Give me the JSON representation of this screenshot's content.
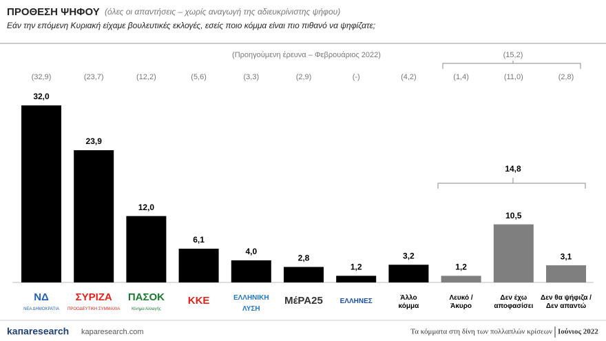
{
  "chart_data": {
    "type": "bar",
    "title": "ΠΡΟΘΕΣΗ ΨΗΦΟΥ",
    "subtitle": "(όλες οι απαντήσεις – χωρίς αναγωγή της αδιευκρίνιστης ψήφου)",
    "question": "Εάν την επόμενη Κυριακή είχαμε βουλευτικές εκλογές, εσείς ποιο κόμμα είναι πιο πιθανό να ψηφίζατε;",
    "previous_note": "(Προηγούμενη έρευνα – Φεβρουάριος 2022)",
    "categories": [
      [
        "ΝΔ",
        "ΝΕΑ ΔΗΜΟΚΡΑΤΙΑ"
      ],
      [
        "ΣΥΡΙΖΑ",
        "ΠΡΟΟΔΕΥΤΙΚΗ ΣΥΜΜΑΧΙΑ"
      ],
      [
        "ΠΑΣΟΚ",
        "Κίνημα Αλλαγής"
      ],
      [
        "ΚΚΕ"
      ],
      [
        "ΕΛΛΗΝΙΚΗ",
        "ΛΥΣΗ"
      ],
      [
        "ΜέΡΑ25"
      ],
      [
        "ΕΛΛΗΝΕΣ"
      ],
      [
        "Άλλο",
        "κόμμα"
      ],
      [
        "Λευκό /",
        "Άκυρο"
      ],
      [
        "Δεν έχω",
        "αποφασίσει"
      ],
      [
        "Δεν θα ψήφιζα /",
        "Δεν απαντώ"
      ]
    ],
    "label_colors": [
      "#1f5fb4",
      "#e2231a",
      "#1a7a2e",
      "#e2231a",
      "#1f78c8",
      "#333333",
      "#1a4fa0",
      "#000000",
      "#000000",
      "#000000",
      "#000000"
    ],
    "values": [
      32.0,
      23.9,
      12.0,
      6.1,
      4.0,
      2.8,
      1.2,
      3.2,
      1.2,
      10.5,
      3.1
    ],
    "value_labels": [
      "32,0",
      "23,9",
      "12,0",
      "6,1",
      "4,0",
      "2,8",
      "1,2",
      "3,2",
      "1,2",
      "10,5",
      "3,1"
    ],
    "colors": [
      "#000000",
      "#000000",
      "#000000",
      "#000000",
      "#000000",
      "#000000",
      "#000000",
      "#000000",
      "#7f7f7f",
      "#7f7f7f",
      "#7f7f7f"
    ],
    "previous_values": [
      32.9,
      23.7,
      12.2,
      5.6,
      3.3,
      2.9,
      null,
      4.2,
      1.4,
      11.0,
      2.8
    ],
    "previous_labels": [
      "(32,9)",
      "(23,7)",
      "(12,2)",
      "(5,6)",
      "(3,3)",
      "(2,9)",
      "(-)",
      "(4,2)",
      "(1,4)",
      "(11,0)",
      "(2,8)"
    ],
    "group_total": {
      "value": 14.8,
      "label": "14,8"
    },
    "group_previous": {
      "value": 15.2,
      "label": "(15,2)"
    },
    "ylim": [
      0,
      32
    ],
    "footer_brand": "kaпaresearch",
    "footer_site": "kaparesearch.com",
    "footer_text": "Τα κόμματα στη δίνη των πολλαπλών κρίσεων",
    "footer_date": "Ιούνιος 2022"
  }
}
